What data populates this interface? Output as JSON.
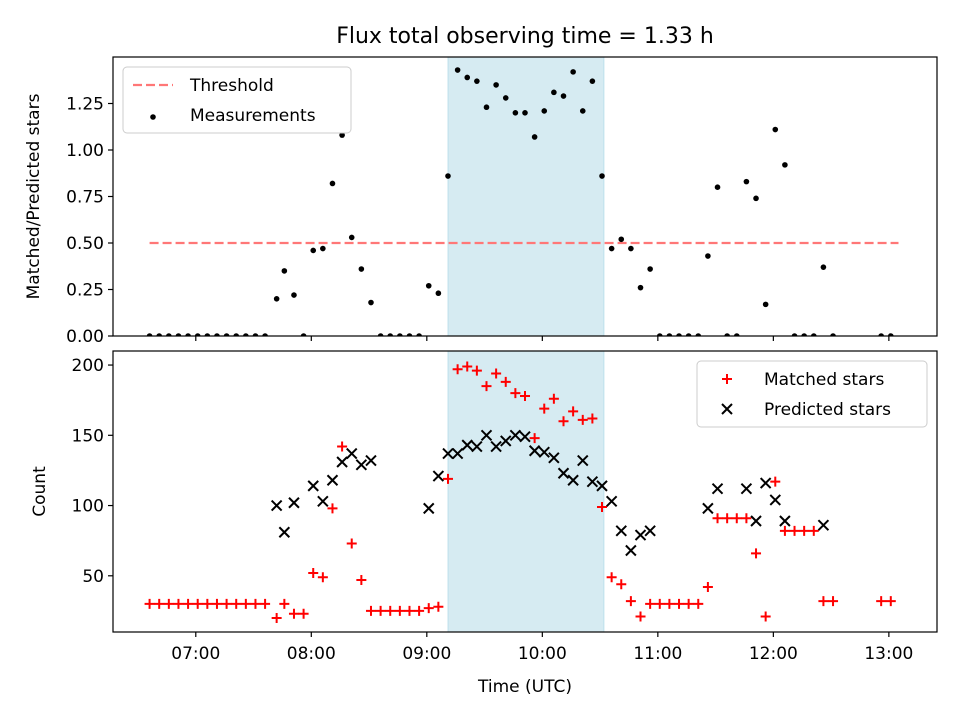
{
  "title": "Flux total observing time = 1.33 h",
  "chart_data": [
    {
      "type": "scatter",
      "title": "Flux total observing time = 1.33 h",
      "xlabel": "",
      "ylabel": "Matched/Predicted stars",
      "xlim": [
        "06:17",
        "13:25"
      ],
      "ylim": [
        0,
        1.5
      ],
      "yticks": [
        "0.00",
        "0.25",
        "0.50",
        "0.75",
        "1.00",
        "1.25"
      ],
      "xticks": [
        "07:00",
        "08:00",
        "09:00",
        "10:00",
        "11:00",
        "12:00",
        "13:00"
      ],
      "highlight_span": [
        "09:11",
        "10:32"
      ],
      "legend": {
        "position": "upper-left",
        "entries": [
          "Threshold",
          "Measurements"
        ]
      },
      "series": [
        {
          "name": "Threshold",
          "kind": "dashed-line",
          "color": "#ff7777",
          "points": [
            [
              "06:36",
              0.5
            ],
            [
              "13:05",
              0.5
            ]
          ]
        },
        {
          "name": "Measurements",
          "kind": "scatter",
          "color": "#000000",
          "points": [
            [
              "06:36",
              0.0
            ],
            [
              "06:41",
              0.0
            ],
            [
              "06:46",
              0.0
            ],
            [
              "06:51",
              0.0
            ],
            [
              "06:56",
              0.0
            ],
            [
              "07:01",
              0.0
            ],
            [
              "07:06",
              0.0
            ],
            [
              "07:11",
              0.0
            ],
            [
              "07:16",
              0.0
            ],
            [
              "07:21",
              0.0
            ],
            [
              "07:26",
              0.0
            ],
            [
              "07:31",
              0.0
            ],
            [
              "07:36",
              0.0
            ],
            [
              "07:42",
              0.2
            ],
            [
              "07:46",
              0.35
            ],
            [
              "07:51",
              0.22
            ],
            [
              "07:56",
              0.0
            ],
            [
              "08:01",
              0.46
            ],
            [
              "08:06",
              0.47
            ],
            [
              "08:11",
              0.82
            ],
            [
              "08:16",
              1.08
            ],
            [
              "08:21",
              0.53
            ],
            [
              "08:26",
              0.36
            ],
            [
              "08:31",
              0.18
            ],
            [
              "08:36",
              0.0
            ],
            [
              "08:41",
              0.0
            ],
            [
              "08:46",
              0.0
            ],
            [
              "08:51",
              0.0
            ],
            [
              "08:56",
              0.0
            ],
            [
              "09:01",
              0.27
            ],
            [
              "09:06",
              0.23
            ],
            [
              "09:11",
              0.86
            ],
            [
              "09:16",
              1.43
            ],
            [
              "09:21",
              1.39
            ],
            [
              "09:26",
              1.37
            ],
            [
              "09:31",
              1.23
            ],
            [
              "09:36",
              1.35
            ],
            [
              "09:41",
              1.28
            ],
            [
              "09:46",
              1.2
            ],
            [
              "09:51",
              1.2
            ],
            [
              "09:56",
              1.07
            ],
            [
              "10:01",
              1.21
            ],
            [
              "10:06",
              1.31
            ],
            [
              "10:11",
              1.29
            ],
            [
              "10:16",
              1.42
            ],
            [
              "10:21",
              1.21
            ],
            [
              "10:26",
              1.37
            ],
            [
              "10:31",
              0.86
            ],
            [
              "10:36",
              0.47
            ],
            [
              "10:41",
              0.52
            ],
            [
              "10:46",
              0.47
            ],
            [
              "10:51",
              0.26
            ],
            [
              "10:56",
              0.36
            ],
            [
              "11:01",
              0.0
            ],
            [
              "11:06",
              0.0
            ],
            [
              "11:11",
              0.0
            ],
            [
              "11:16",
              0.0
            ],
            [
              "11:21",
              0.0
            ],
            [
              "11:26",
              0.43
            ],
            [
              "11:31",
              0.8
            ],
            [
              "11:36",
              0.0
            ],
            [
              "11:41",
              0.0
            ],
            [
              "11:46",
              0.83
            ],
            [
              "11:51",
              0.74
            ],
            [
              "11:56",
              0.17
            ],
            [
              "12:01",
              1.11
            ],
            [
              "12:06",
              0.92
            ],
            [
              "12:11",
              0.0
            ],
            [
              "12:16",
              0.0
            ],
            [
              "12:21",
              0.0
            ],
            [
              "12:26",
              0.37
            ],
            [
              "12:31",
              0.0
            ],
            [
              "12:56",
              0.0
            ],
            [
              "13:01",
              0.0
            ]
          ]
        }
      ]
    },
    {
      "type": "scatter",
      "title": "",
      "xlabel": "Time (UTC)",
      "ylabel": "Count",
      "xlim": [
        "06:17",
        "13:25"
      ],
      "ylim": [
        10,
        210
      ],
      "yticks": [
        "50",
        "100",
        "150",
        "200"
      ],
      "xticks": [
        "07:00",
        "08:00",
        "09:00",
        "10:00",
        "11:00",
        "12:00",
        "13:00"
      ],
      "highlight_span": [
        "09:11",
        "10:32"
      ],
      "legend": {
        "position": "upper-right",
        "entries": [
          "Matched stars",
          "Predicted stars"
        ]
      },
      "series": [
        {
          "name": "Matched stars",
          "kind": "plus",
          "color": "#ff0000",
          "points": [
            [
              "06:36",
              30
            ],
            [
              "06:41",
              30
            ],
            [
              "06:46",
              30
            ],
            [
              "06:51",
              30
            ],
            [
              "06:56",
              30
            ],
            [
              "07:01",
              30
            ],
            [
              "07:06",
              30
            ],
            [
              "07:11",
              30
            ],
            [
              "07:16",
              30
            ],
            [
              "07:21",
              30
            ],
            [
              "07:26",
              30
            ],
            [
              "07:31",
              30
            ],
            [
              "07:36",
              30
            ],
            [
              "07:42",
              20
            ],
            [
              "07:46",
              30
            ],
            [
              "07:51",
              23
            ],
            [
              "07:56",
              23
            ],
            [
              "08:01",
              52
            ],
            [
              "08:06",
              49
            ],
            [
              "08:11",
              98
            ],
            [
              "08:16",
              142
            ],
            [
              "08:21",
              73
            ],
            [
              "08:26",
              47
            ],
            [
              "08:31",
              25
            ],
            [
              "08:36",
              25
            ],
            [
              "08:41",
              25
            ],
            [
              "08:46",
              25
            ],
            [
              "08:51",
              25
            ],
            [
              "08:56",
              25
            ],
            [
              "09:01",
              27
            ],
            [
              "09:06",
              28
            ],
            [
              "09:11",
              119
            ],
            [
              "09:16",
              197
            ],
            [
              "09:21",
              199
            ],
            [
              "09:26",
              196
            ],
            [
              "09:31",
              185
            ],
            [
              "09:36",
              194
            ],
            [
              "09:41",
              188
            ],
            [
              "09:46",
              180
            ],
            [
              "09:51",
              178
            ],
            [
              "09:56",
              148
            ],
            [
              "10:01",
              169
            ],
            [
              "10:06",
              176
            ],
            [
              "10:11",
              160
            ],
            [
              "10:16",
              167
            ],
            [
              "10:21",
              161
            ],
            [
              "10:26",
              162
            ],
            [
              "10:31",
              99
            ],
            [
              "10:36",
              49
            ],
            [
              "10:41",
              44
            ],
            [
              "10:46",
              32
            ],
            [
              "10:51",
              21
            ],
            [
              "10:56",
              30
            ],
            [
              "11:01",
              30
            ],
            [
              "11:06",
              30
            ],
            [
              "11:11",
              30
            ],
            [
              "11:16",
              30
            ],
            [
              "11:21",
              30
            ],
            [
              "11:26",
              42
            ],
            [
              "11:31",
              91
            ],
            [
              "11:36",
              91
            ],
            [
              "11:41",
              91
            ],
            [
              "11:46",
              91
            ],
            [
              "11:51",
              66
            ],
            [
              "11:56",
              21
            ],
            [
              "12:01",
              117
            ],
            [
              "12:06",
              82
            ],
            [
              "12:11",
              82
            ],
            [
              "12:16",
              82
            ],
            [
              "12:21",
              82
            ],
            [
              "12:26",
              32
            ],
            [
              "12:31",
              32
            ],
            [
              "12:56",
              32
            ],
            [
              "13:01",
              32
            ]
          ]
        },
        {
          "name": "Predicted stars",
          "kind": "cross",
          "color": "#000000",
          "points": [
            [
              "07:42",
              100
            ],
            [
              "07:46",
              81
            ],
            [
              "07:51",
              102
            ],
            [
              "08:01",
              114
            ],
            [
              "08:06",
              103
            ],
            [
              "08:11",
              118
            ],
            [
              "08:16",
              131
            ],
            [
              "08:21",
              137
            ],
            [
              "08:26",
              129
            ],
            [
              "08:31",
              132
            ],
            [
              "09:01",
              98
            ],
            [
              "09:06",
              121
            ],
            [
              "09:11",
              137
            ],
            [
              "09:16",
              137
            ],
            [
              "09:21",
              143
            ],
            [
              "09:26",
              142
            ],
            [
              "09:31",
              150
            ],
            [
              "09:36",
              142
            ],
            [
              "09:41",
              146
            ],
            [
              "09:46",
              150
            ],
            [
              "09:51",
              149
            ],
            [
              "09:56",
              139
            ],
            [
              "10:01",
              138
            ],
            [
              "10:06",
              134
            ],
            [
              "10:11",
              123
            ],
            [
              "10:16",
              118
            ],
            [
              "10:21",
              132
            ],
            [
              "10:26",
              117
            ],
            [
              "10:31",
              114
            ],
            [
              "10:36",
              103
            ],
            [
              "10:41",
              82
            ],
            [
              "10:46",
              68
            ],
            [
              "10:51",
              79
            ],
            [
              "10:56",
              82
            ],
            [
              "11:26",
              98
            ],
            [
              "11:31",
              112
            ],
            [
              "11:46",
              112
            ],
            [
              "11:51",
              89
            ],
            [
              "11:56",
              116
            ],
            [
              "12:01",
              104
            ],
            [
              "12:06",
              89
            ],
            [
              "12:26",
              86
            ]
          ]
        }
      ]
    }
  ]
}
